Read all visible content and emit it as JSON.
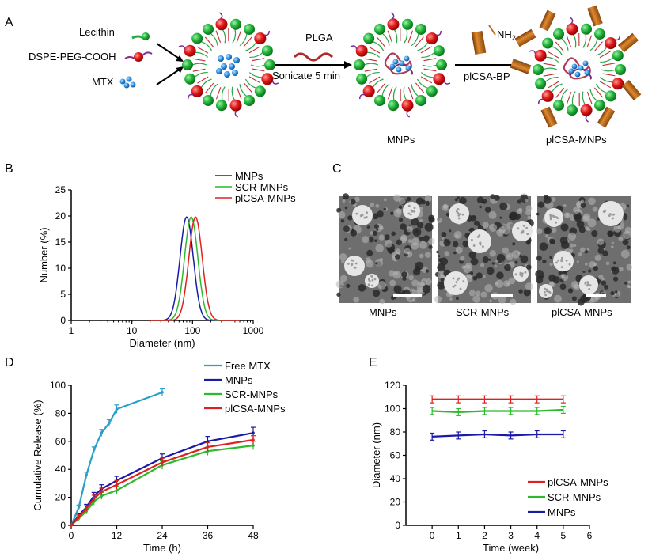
{
  "panel_letters": {
    "a": "A",
    "b": "B",
    "c": "C",
    "d": "D",
    "e": "E"
  },
  "scheme": {
    "reagents": [
      "Lecithin",
      "DSPE-PEG-COOH",
      "MTX"
    ],
    "step1_reagent": "PLGA",
    "step1_condition": "Sonicate 5 min",
    "step2_group": "NH",
    "step2_group_sub": "2",
    "step2_reagent": "plCSA-BP",
    "product1": "MNPs",
    "product2": "plCSA-MNPs"
  },
  "tem": {
    "captions": [
      "MNPs",
      "SCR-MNPs",
      "plCSA-MNPs"
    ]
  },
  "colors": {
    "mnps": "#1a1aa8",
    "scr": "#2aba2a",
    "plcsa": "#e02020",
    "free": "#2aa0c8"
  },
  "chart_data": [
    {
      "panel": "B",
      "type": "line",
      "xscale": "log",
      "xlabel": "Diameter (nm)",
      "ylabel": "Number (%)",
      "xticks": [
        "1",
        "10",
        "100",
        "1000"
      ],
      "yticks": [
        "0",
        "5",
        "10",
        "15",
        "20",
        "25"
      ],
      "xlim": [
        1,
        1000
      ],
      "ylim": [
        0,
        25
      ],
      "legend_position": "top-right",
      "series": [
        {
          "name": "MNPs",
          "center": 80,
          "peak": 19.8,
          "width": 0.11
        },
        {
          "name": "SCR-MNPs",
          "center": 95,
          "peak": 19.8,
          "width": 0.11
        },
        {
          "name": "plCSA-MNPs",
          "center": 112,
          "peak": 19.8,
          "width": 0.11
        }
      ]
    },
    {
      "panel": "D",
      "type": "line",
      "xlabel": "Time (h)",
      "ylabel": "Cumulative Release (%)",
      "xticks": [
        "0",
        "12",
        "24",
        "36",
        "48"
      ],
      "yticks": [
        "0",
        "20",
        "40",
        "60",
        "80",
        "100"
      ],
      "xlim": [
        0,
        48
      ],
      "ylim": [
        0,
        100
      ],
      "legend_position": "top-right",
      "series": [
        {
          "name": "Free MTX",
          "x": [
            0,
            2,
            4,
            6,
            8,
            10,
            12,
            24
          ],
          "y": [
            0,
            13,
            36,
            54,
            66,
            73,
            83,
            95
          ],
          "err": [
            0,
            1.5,
            2,
            2,
            2.5,
            2.5,
            3,
            2.5
          ]
        },
        {
          "name": "MNPs",
          "x": [
            0,
            2,
            4,
            6,
            8,
            12,
            24,
            36,
            48
          ],
          "y": [
            0,
            7,
            13,
            21,
            26,
            32,
            48,
            60,
            66
          ],
          "err": [
            0,
            1.5,
            2,
            2.5,
            3,
            3,
            3,
            3.5,
            4
          ]
        },
        {
          "name": "SCR-MNPs",
          "x": [
            0,
            2,
            4,
            6,
            8,
            12,
            24,
            36,
            48
          ],
          "y": [
            0,
            5,
            10,
            17,
            21,
            25,
            43,
            53,
            57
          ],
          "err": [
            0,
            1.5,
            2,
            2.5,
            2.5,
            3,
            3,
            3,
            3
          ]
        },
        {
          "name": "plCSA-MNPs",
          "x": [
            0,
            2,
            4,
            6,
            8,
            12,
            24,
            36,
            48
          ],
          "y": [
            0,
            6,
            12,
            19,
            24,
            29,
            45,
            56,
            61
          ],
          "err": [
            0,
            1.5,
            2,
            2.5,
            2.5,
            3,
            3,
            3,
            3
          ]
        }
      ]
    },
    {
      "panel": "E",
      "type": "line",
      "xlabel": "Time (week)",
      "ylabel": "Diameter (nm)",
      "xticks": [
        "0",
        "1",
        "2",
        "3",
        "4",
        "5",
        "6"
      ],
      "yticks": [
        "0",
        "20",
        "40",
        "60",
        "80",
        "100",
        "120"
      ],
      "xlim": [
        -1,
        6
      ],
      "ylim": [
        0,
        120
      ],
      "legend_position": "bottom-right",
      "series": [
        {
          "name": "plCSA-MNPs",
          "x": [
            0,
            1,
            2,
            3,
            4,
            5
          ],
          "y": [
            108,
            108,
            108,
            108,
            108,
            108
          ],
          "err": [
            3,
            3,
            3,
            3,
            3,
            3
          ]
        },
        {
          "name": "SCR-MNPs",
          "x": [
            0,
            1,
            2,
            3,
            4,
            5
          ],
          "y": [
            98,
            97,
            98,
            98,
            98,
            99
          ],
          "err": [
            3,
            3,
            3,
            3,
            3,
            3
          ]
        },
        {
          "name": "MNPs",
          "x": [
            0,
            1,
            2,
            3,
            4,
            5
          ],
          "y": [
            76,
            77,
            78,
            77,
            78,
            78
          ],
          "err": [
            3,
            3,
            3,
            3,
            3,
            3
          ]
        }
      ]
    }
  ]
}
